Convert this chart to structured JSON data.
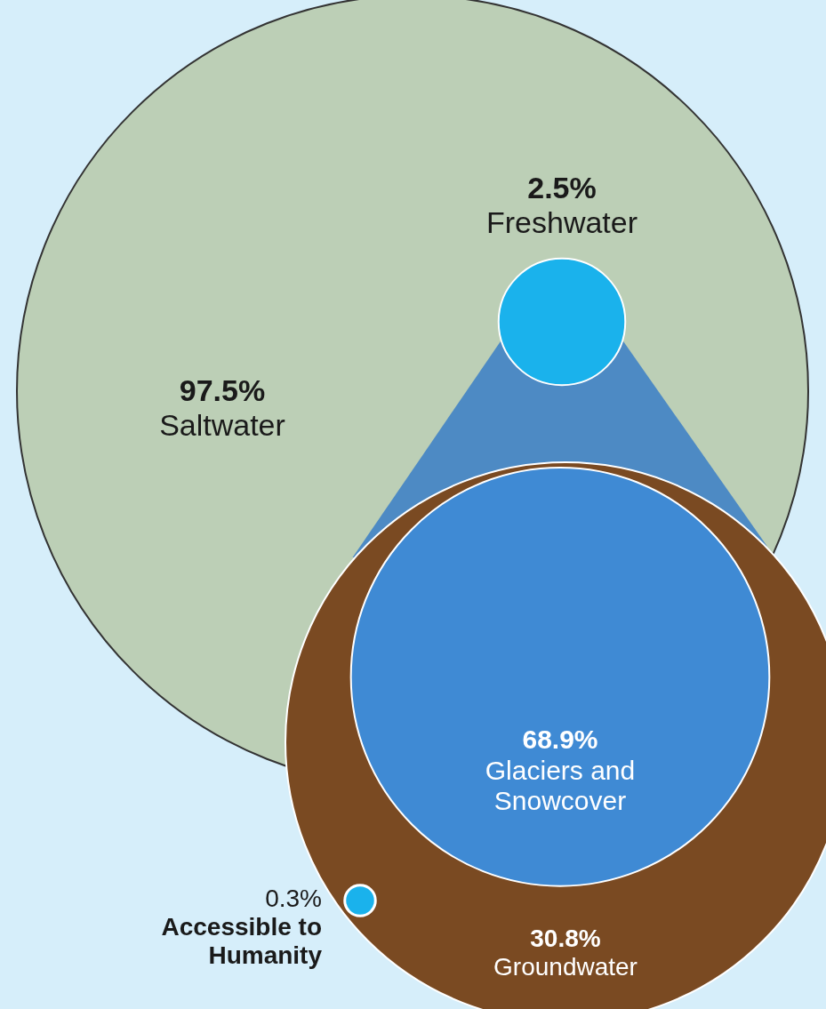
{
  "chart_data": {
    "type": "other",
    "categories": [
      "Saltwater",
      "Freshwater",
      "Glaciers and Snowcover",
      "Groundwater",
      "Accessible to Humanity"
    ],
    "values": [
      97.5,
      2.5,
      68.9,
      30.8,
      0.3
    ],
    "value_labels": [
      "97.5%",
      "2.5%",
      "68.9%",
      "30.8%",
      "0.3%"
    ],
    "colors": [
      "#bccfb6",
      "#1ab2ec",
      "#3f8ad4",
      "#7a4a22",
      "#1ab2ec"
    ]
  }
}
